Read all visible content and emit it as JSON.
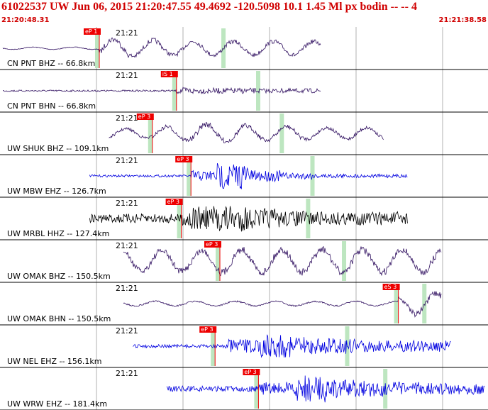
{
  "header": {
    "title": "61022537 UW Jun 06, 2015 21:20:47.55   49.4692 -120.5098 10.1 1.45 Ml px bodin -- --   4",
    "start_time": "21:20:48.31",
    "end_time": "21:21:38.58"
  },
  "colors": {
    "header_red": "#d00000",
    "pick": "#ee0000",
    "window": "#bde6c0",
    "purple": "#301060",
    "blue": "#0000e0",
    "black": "#000000"
  },
  "traces": [
    {
      "label": "CN PNT BHZ -- 66.8km",
      "tick": "21:21",
      "pick": "eP 1",
      "color": "purple",
      "start": 0.0,
      "end": 0.66,
      "onset": 0.2,
      "env": [
        2,
        4,
        6,
        16,
        14,
        12,
        12,
        12,
        12,
        12,
        12
      ],
      "shape": "mixed"
    },
    {
      "label": "CN PNT BHN -- 66.8km",
      "tick": "21:21",
      "pick": "iS 1",
      "color": "purple",
      "start": 0.0,
      "end": 0.66,
      "onset": 0.36,
      "env": [
        1.5,
        1.5,
        3,
        5,
        6,
        6,
        5,
        5,
        4,
        4,
        4
      ],
      "shape": "burst"
    },
    {
      "label": "UW SHUK BHZ -- 109.1km",
      "tick": "21:21",
      "pick": "eP 3",
      "color": "purple",
      "start": 0.22,
      "end": 0.79,
      "onset": 0.31,
      "env": [
        8,
        10,
        12,
        16,
        14,
        12,
        12,
        10,
        10,
        10,
        10
      ],
      "shape": "mixed"
    },
    {
      "label": "UW MBW EHZ -- 126.7km",
      "tick": "21:21",
      "pick": "eP 3",
      "color": "blue",
      "start": 0.18,
      "end": 0.84,
      "onset": 0.39,
      "env": [
        2,
        2,
        2,
        10,
        24,
        10,
        6,
        4,
        3,
        3,
        3
      ],
      "shape": "burst"
    },
    {
      "label": "UW MRBL HHZ -- 127.4km",
      "tick": "21:21",
      "pick": "eP 3",
      "color": "black",
      "start": 0.18,
      "end": 0.84,
      "onset": 0.37,
      "env": [
        8,
        10,
        12,
        22,
        24,
        18,
        14,
        12,
        12,
        12,
        12
      ],
      "shape": "burst"
    },
    {
      "label": "UW OMAK BHZ -- 150.5km",
      "tick": "21:21",
      "pick": "eP 3",
      "color": "purple",
      "start": 0.25,
      "end": 0.91,
      "onset": 0.45,
      "env": [
        18,
        18,
        18,
        20,
        20,
        20,
        20,
        20,
        20,
        20,
        20
      ],
      "shape": "mixed"
    },
    {
      "label": "UW OMAK BHN -- 150.5km",
      "tick": "21:21",
      "pick": "eS 3",
      "color": "purple",
      "start": 0.25,
      "end": 0.91,
      "onset": 0.82,
      "env": [
        4,
        4,
        6,
        8,
        8,
        8,
        6,
        6,
        10,
        18,
        18
      ],
      "shape": "mixed"
    },
    {
      "label": "UW NEL EHZ -- 156.1km",
      "tick": "21:21",
      "pick": "eP 3",
      "color": "blue",
      "start": 0.27,
      "end": 0.93,
      "onset": 0.44,
      "env": [
        3,
        3,
        4,
        12,
        20,
        16,
        14,
        10,
        10,
        10,
        10
      ],
      "shape": "burst"
    },
    {
      "label": "UW WRW EHZ -- 181.4km",
      "tick": "21:21",
      "pick": "eP 3",
      "color": "blue",
      "start": 0.34,
      "end": 1.0,
      "onset": 0.53,
      "env": [
        5,
        6,
        8,
        12,
        24,
        16,
        14,
        12,
        10,
        10,
        10
      ],
      "shape": "burst"
    }
  ]
}
